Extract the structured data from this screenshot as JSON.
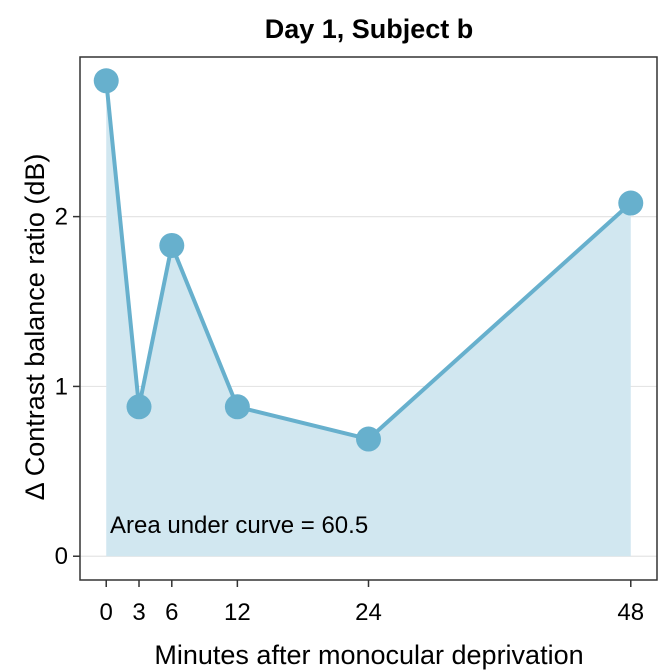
{
  "chart_data": {
    "type": "line",
    "title": "Day 1, Subject b",
    "xlabel": "Minutes after monocular deprivation",
    "ylabel": "Δ Contrast balance ratio (dB)",
    "x": [
      0,
      3,
      6,
      12,
      24,
      48
    ],
    "series": [
      {
        "values": [
          2.8,
          0.88,
          1.83,
          0.88,
          0.69,
          2.08
        ]
      }
    ],
    "xticks": [
      0,
      3,
      6,
      12,
      24,
      48
    ],
    "xtick_labels": [
      "0",
      "3",
      "6",
      "12",
      "24",
      "48"
    ],
    "yticks": [
      0,
      1,
      2
    ],
    "ytick_labels": [
      "0",
      "1",
      "2"
    ],
    "xlim": [
      -2.4,
      50.4
    ],
    "ylim": [
      -0.14,
      2.94
    ],
    "annotation": "Area under curve = 60.5",
    "grid": "horizontal",
    "colors": {
      "line": "#67b0cd",
      "area": "#d1e7f0",
      "grid": "#e5e5e5",
      "frame": "#333333"
    }
  }
}
